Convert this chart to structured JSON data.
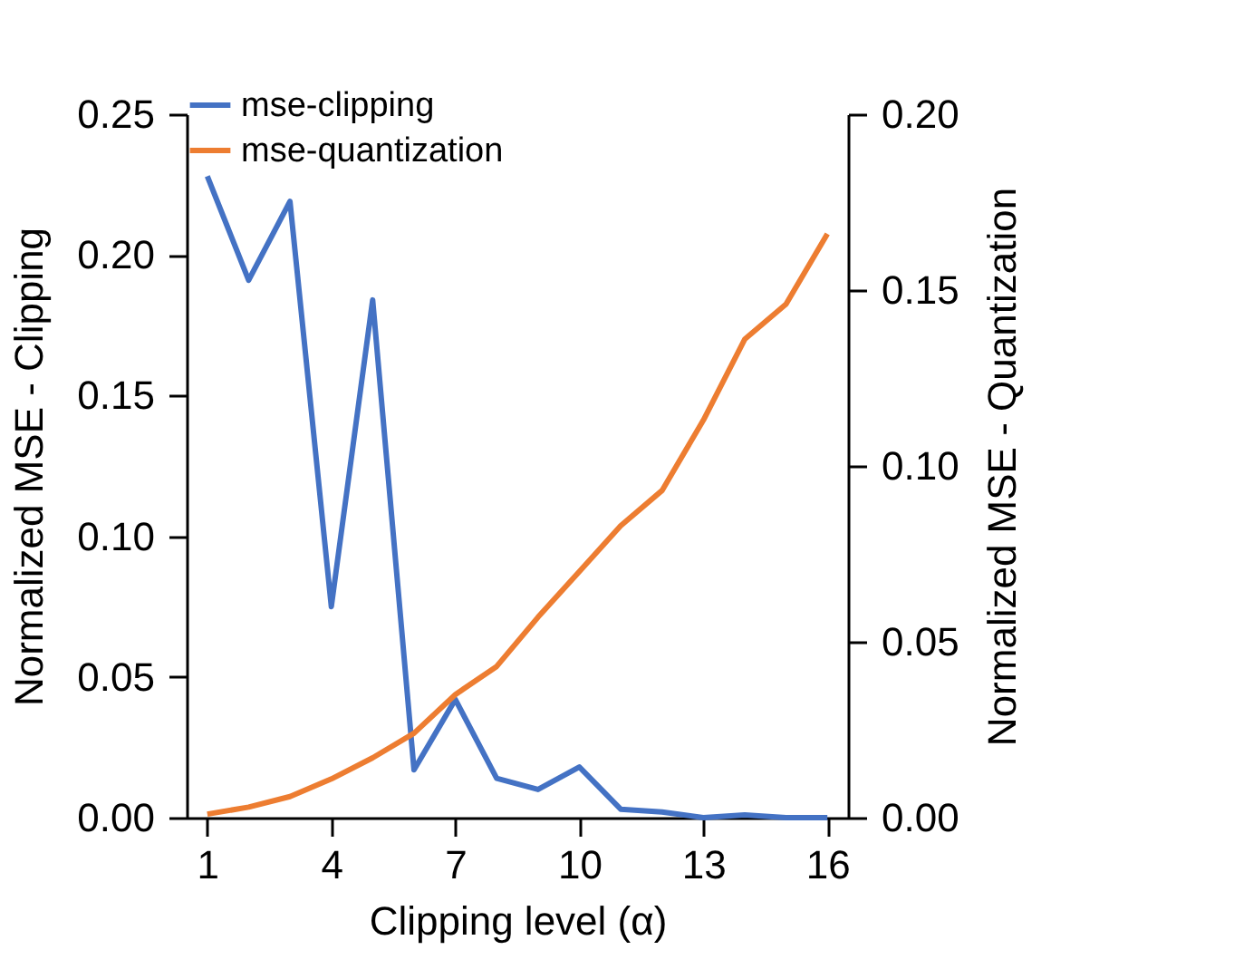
{
  "chart_data": {
    "type": "line",
    "xlabel": "Clipping level (α)",
    "ylabel": "Normalized MSE - Clipping",
    "y2label": "Normalized MSE - Quantization",
    "x": [
      1,
      2,
      3,
      4,
      5,
      6,
      7,
      8,
      9,
      10,
      11,
      12,
      13,
      14,
      15,
      16
    ],
    "xlim": [
      0.5,
      16.5
    ],
    "xticks": [
      1,
      4,
      7,
      10,
      13,
      16
    ],
    "ylim": [
      0,
      0.25
    ],
    "yticks": [
      {
        "value": 0,
        "label": "0.00"
      },
      {
        "value": 0.05,
        "label": "0.05"
      },
      {
        "value": 0.1,
        "label": "0.10"
      },
      {
        "value": 0.15,
        "label": "0.15"
      },
      {
        "value": 0.2,
        "label": "0.20"
      },
      {
        "value": 0.25,
        "label": "0.25"
      }
    ],
    "y2lim": [
      0,
      0.2
    ],
    "y2ticks": [
      {
        "value": 0,
        "label": "0.00"
      },
      {
        "value": 0.05,
        "label": "0.05"
      },
      {
        "value": 0.1,
        "label": "0.10"
      },
      {
        "value": 0.15,
        "label": "0.15"
      },
      {
        "value": 0.2,
        "label": "0.20"
      }
    ],
    "series": [
      {
        "name": "mse-clipping",
        "color": "#4472c4",
        "values": [
          0.228,
          0.191,
          0.219,
          0.075,
          0.184,
          0.017,
          0.042,
          0.014,
          0.01,
          0.018,
          0.003,
          0.002,
          0.0,
          0.001,
          0.0,
          0.0
        ]
      },
      {
        "name": "mse-quantization",
        "color": "#ed7d31",
        "axis": "y2",
        "values": [
          0.001,
          0.003,
          0.006,
          0.011,
          0.017,
          0.024,
          0.035,
          0.043,
          0.057,
          0.07,
          0.083,
          0.093,
          0.113,
          0.136,
          0.146,
          0.166
        ]
      }
    ],
    "legend": "top",
    "grid": false,
    "marker": "none",
    "line_style": "solid"
  }
}
